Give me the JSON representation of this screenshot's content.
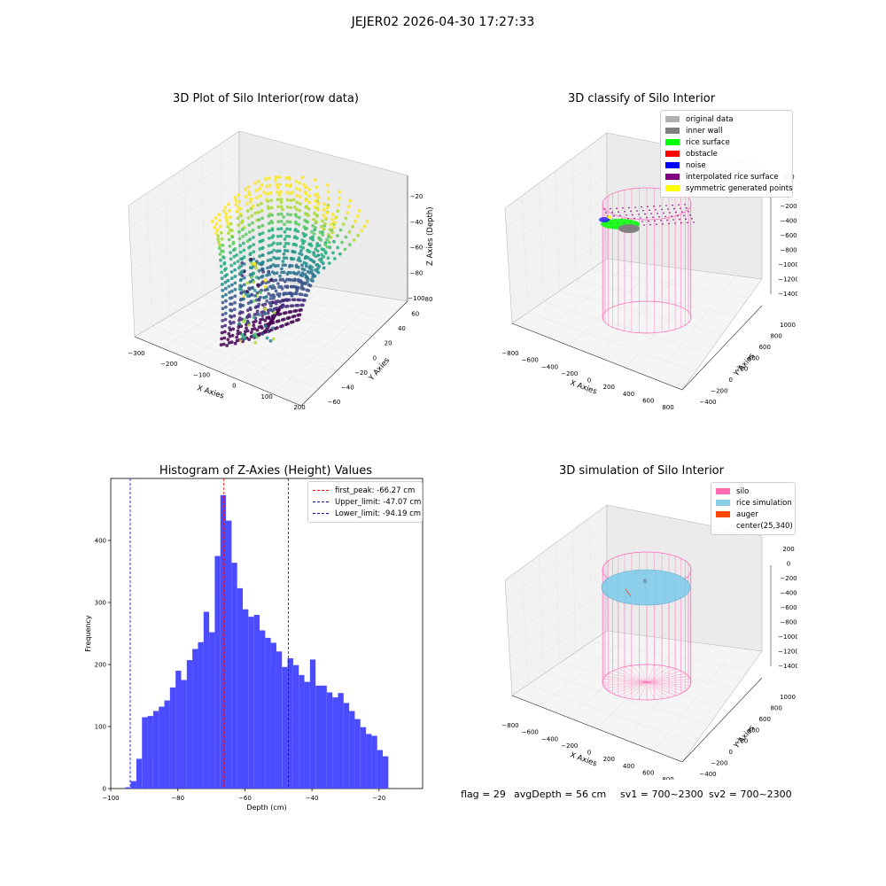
{
  "suptitle": "JEJER02 2026-04-30 17:27:33",
  "colors": {
    "hist_bar": "#4b4bff",
    "peak_line": "#ff0000",
    "limit_line": "#0000cc",
    "silo": "#ff69b4",
    "rice_sim": "#87ceeb",
    "auger": "#ff4500"
  },
  "panels": {
    "raw": {
      "title": "3D Plot of Silo Interior(row data)",
      "xlabel": "X Axies",
      "ylabel": "Y Axies",
      "zlabel": "Z Axies (Depth)",
      "x_ticks": [
        "−300",
        "−200",
        "−100",
        "0",
        "100",
        "200"
      ],
      "y_ticks": [
        "−60",
        "−40",
        "−20",
        "0",
        "20",
        "40",
        "60",
        "80"
      ],
      "z_ticks": [
        "−20",
        "−40",
        "−60",
        "−80",
        "−100"
      ],
      "colormap": "viridis"
    },
    "classify": {
      "title": "3D classify of Silo Interior",
      "xlabel": "X Axies",
      "ylabel": "Y Axies",
      "zlabel": "Z Axies (Depth)",
      "x_ticks": [
        "−800",
        "−600",
        "−400",
        "−200",
        "0",
        "200",
        "400",
        "600",
        "800"
      ],
      "y_ticks": [
        "−400",
        "−200",
        "0",
        "200",
        "400",
        "600",
        "800",
        "1000"
      ],
      "z_ticks": [
        "200",
        "0",
        "−200",
        "−400",
        "−600",
        "−800",
        "−1000",
        "−1200",
        "−1400"
      ],
      "legend": [
        {
          "label": "original data",
          "color": "#b0b0b0"
        },
        {
          "label": "inner wall",
          "color": "#808080"
        },
        {
          "label": "rice surface",
          "color": "#00ff00"
        },
        {
          "label": "obstacle",
          "color": "#ff0000"
        },
        {
          "label": "noise",
          "color": "#0000ff"
        },
        {
          "label": "interpolated rice surface",
          "color": "#800080"
        },
        {
          "label": "symmetric generated points",
          "color": "#ffff00"
        }
      ]
    },
    "simulation": {
      "title": "3D simulation of Silo Interior",
      "xlabel": "X Axies",
      "ylabel": "Y Axies",
      "zlabel": "Z Axies (Depth)",
      "x_ticks": [
        "−800",
        "−600",
        "−400",
        "−200",
        "0",
        "200",
        "400",
        "600",
        "800"
      ],
      "y_ticks": [
        "−400",
        "−200",
        "0",
        "200",
        "400",
        "600",
        "800",
        "1000"
      ],
      "z_ticks": [
        "200",
        "0",
        "−200",
        "−400",
        "−600",
        "−800",
        "−1000",
        "−1200",
        "−1400"
      ],
      "legend": [
        {
          "label": "silo",
          "color": "#ff69b4"
        },
        {
          "label": "rice simulation",
          "color": "#87ceeb"
        },
        {
          "label": "auger",
          "color": "#ff4500"
        },
        {
          "label": "center(25,340)",
          "color": "transparent"
        }
      ]
    }
  },
  "status": {
    "flag": "flag = 29",
    "avg_depth": "avgDepth = 56 cm",
    "sv1": "sv1 = 700~2300",
    "sv2": "sv2 = 700~2300"
  },
  "chart_data": [
    {
      "type": "bar",
      "title": "Histogram of Z-Axies (Height) Values",
      "xlabel": "Depth (cm)",
      "ylabel": "Frequency",
      "xlim": [
        -100,
        -7
      ],
      "ylim": [
        0,
        500
      ],
      "x_ticks": [
        -100,
        -80,
        -60,
        -40,
        -20
      ],
      "y_ticks": [
        0,
        100,
        200,
        300,
        400
      ],
      "bin_start": -95.7,
      "bin_width": 1.67,
      "values": [
        2,
        12,
        48,
        115,
        117,
        125,
        132,
        142,
        163,
        190,
        175,
        207,
        225,
        236,
        285,
        252,
        375,
        473,
        432,
        364,
        323,
        289,
        277,
        280,
        255,
        243,
        235,
        221,
        196,
        210,
        199,
        183,
        172,
        208,
        166,
        166,
        155,
        147,
        154,
        138,
        125,
        112,
        99,
        88,
        85,
        62,
        52
      ],
      "vlines": [
        {
          "label": "first_peak: -66.27 cm",
          "x": -66.27,
          "kind": "peak"
        },
        {
          "label": "Upper_limit: -47.07 cm",
          "x": -47.07,
          "kind": "limit"
        },
        {
          "label": "Lower_limit: -94.19 cm",
          "x": -94.19,
          "kind": "limit"
        }
      ],
      "legend_position": "upper right"
    }
  ]
}
